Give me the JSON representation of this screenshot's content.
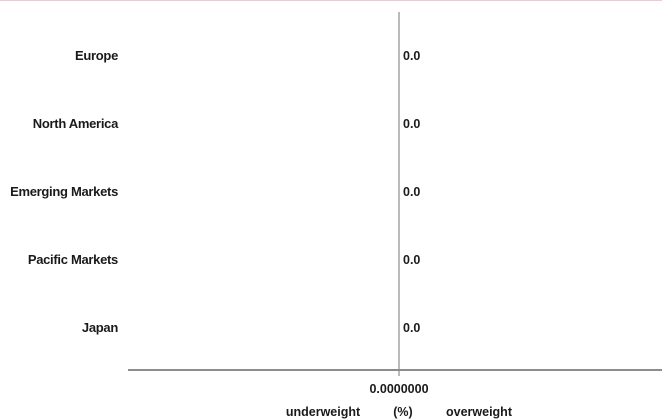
{
  "chart_data": {
    "type": "bar",
    "orientation": "horizontal",
    "categories": [
      "Europe",
      "North America",
      "Emerging Markets",
      "Pacific Markets",
      "Japan"
    ],
    "values": [
      0.0,
      0.0,
      0.0,
      0.0,
      0.0
    ],
    "value_labels": [
      "0.0",
      "0.0",
      "0.0",
      "0.0",
      "0.0"
    ],
    "x_ticks": [
      "0.0000000"
    ],
    "xlabel": "(%)",
    "left_annotation": "underweight",
    "right_annotation": "overweight",
    "xlim": [
      -1,
      1
    ],
    "grid": false,
    "colors": {
      "axis": "#8c8c8c",
      "text": "#1a1a1a",
      "accent_rule": "#f2c9cf"
    }
  }
}
